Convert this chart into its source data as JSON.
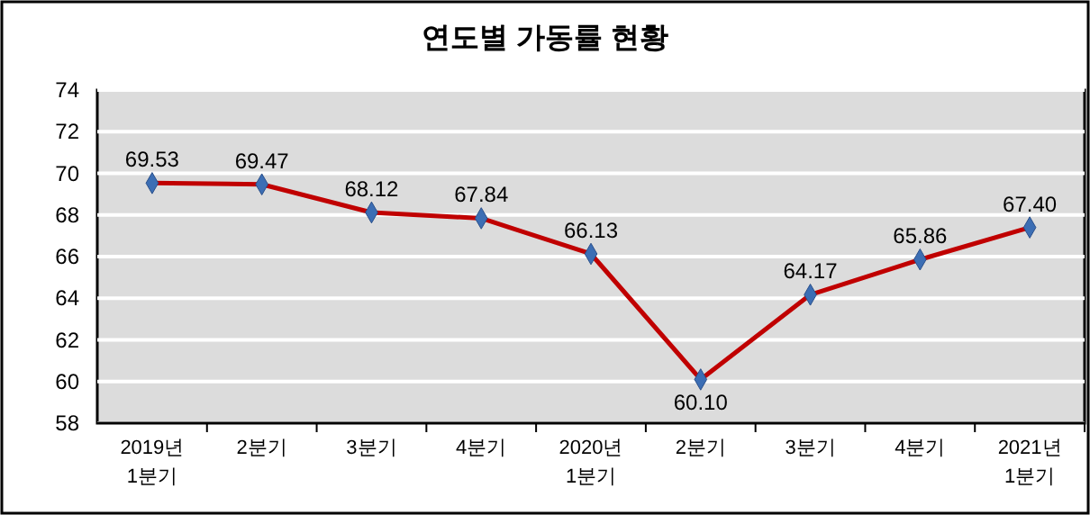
{
  "chart_data": {
    "type": "line",
    "title": "연도별 가동률 현황",
    "categories": [
      "2019년\n1분기",
      "2분기",
      "3분기",
      "4분기",
      "2020년\n1분기",
      "2분기",
      "3분기",
      "4분기",
      "2021년\n1분기"
    ],
    "series": [
      {
        "color": "#c00000",
        "values": [
          69.53,
          69.47,
          68.12,
          67.84,
          66.13,
          60.1,
          64.17,
          65.86,
          67.4
        ],
        "value_labels": [
          "69.53",
          "69.47",
          "68.12",
          "67.84",
          "66.13",
          "60.10",
          "64.17",
          "65.86",
          "67.40"
        ]
      }
    ],
    "ylim": [
      58,
      74
    ],
    "yticks": [
      58,
      60,
      62,
      64,
      66,
      68,
      70,
      72,
      74
    ],
    "grid": "y",
    "marker": "diamond",
    "line_style": "solid"
  }
}
